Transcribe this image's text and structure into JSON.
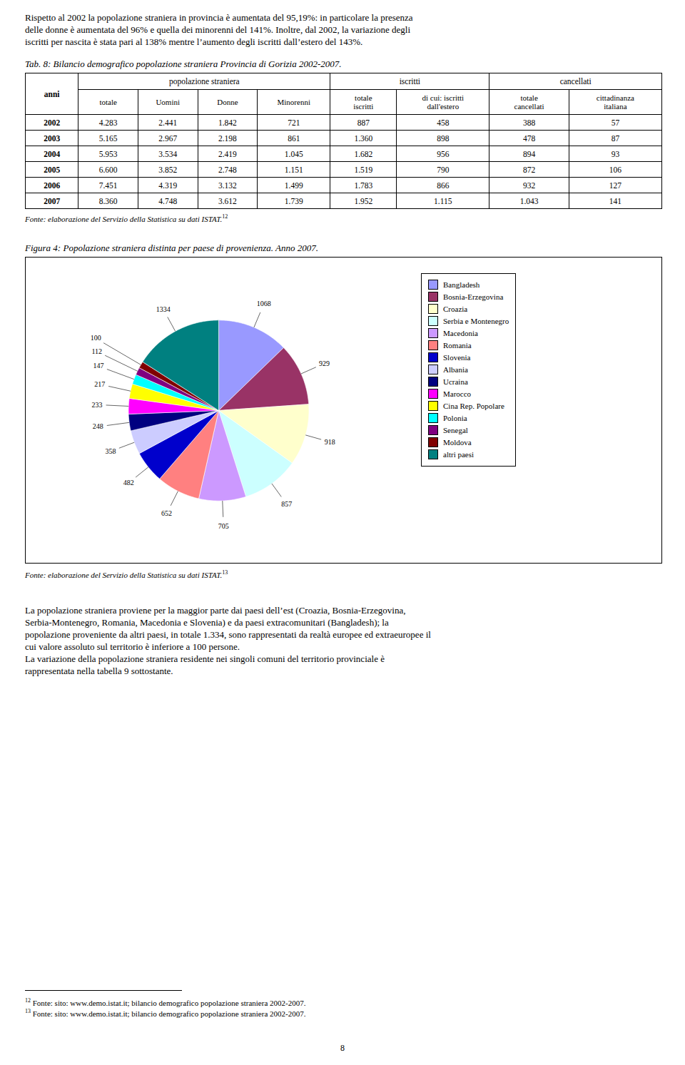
{
  "chart_data": {
    "type": "pie",
    "title": "Figura 4: Popolazione straniera distinta per paese di provenienza. Anno 2007.",
    "categories": [
      "Bangladesh",
      "Bosnia-Erzegovina",
      "Croazia",
      "Serbia e Montenegro",
      "Macedonia",
      "Romania",
      "Slovenia",
      "Albania",
      "Ucraina",
      "Marocco",
      "Cina Rep. Popolare",
      "Polonia",
      "Senegal",
      "Moldova",
      "altri paesi"
    ],
    "values": [
      1068,
      929,
      918,
      857,
      705,
      652,
      482,
      358,
      248,
      233,
      217,
      147,
      112,
      100,
      1334
    ],
    "colors": [
      "#9999ff",
      "#993366",
      "#ffffcc",
      "#ccffff",
      "#cc99ff",
      "#ff8080",
      "#0000cc",
      "#ccccff",
      "#000080",
      "#ff00ff",
      "#ffff00",
      "#00ffff",
      "#800080",
      "#800000",
      "#008080"
    ],
    "data_labels": true,
    "legend": "right"
  },
  "page": {
    "intro_lines": [
      "Rispetto al 2002 la popolazione straniera in provincia è aumentata del 95,19%: in particolare la presenza",
      "delle donne è aumentata del 96% e quella dei minorenni del 141%. Inoltre, dal 2002, la variazione degli",
      "iscritti per nascita è stata pari al 138% mentre l’aumento degli iscritti dall’estero del 143%."
    ],
    "table": {
      "title": "Tab. 8: Bilancio demografico popolazione straniera Provincia di Gorizia 2002-2007.",
      "row_header": "anni",
      "header_groups": [
        {
          "label": "popolazione straniera",
          "columns": [
            "totale",
            "Uomini",
            "Donne",
            "Minorenni"
          ]
        },
        {
          "label": "iscritti",
          "columns": [
            "totale\niscritti",
            "di cui: iscritti\ndall'estero"
          ]
        },
        {
          "label": "cancellati",
          "columns": [
            "totale\ncancellati",
            "cittadinanza\nitaliana"
          ]
        }
      ],
      "rows": [
        [
          "2002",
          "4.283",
          "2.441",
          "1.842",
          "721",
          "887",
          "458",
          "388",
          "57"
        ],
        [
          "2003",
          "5.165",
          "2.967",
          "2.198",
          "861",
          "1.360",
          "898",
          "478",
          "87"
        ],
        [
          "2004",
          "5.953",
          "3.534",
          "2.419",
          "1.045",
          "1.682",
          "956",
          "894",
          "93"
        ],
        [
          "2005",
          "6.600",
          "3.852",
          "2.748",
          "1.151",
          "1.519",
          "790",
          "872",
          "106"
        ],
        [
          "2006",
          "7.451",
          "4.319",
          "3.132",
          "1.499",
          "1.783",
          "866",
          "932",
          "127"
        ],
        [
          "2007",
          "8.360",
          "4.748",
          "3.612",
          "1.739",
          "1.952",
          "1.115",
          "1.043",
          "141"
        ]
      ],
      "source": "Fonte: elaborazione del Servizio della Statistica su dati ISTAT.",
      "source_note": "12"
    },
    "figure_source": "Fonte: elaborazione del Servizio della Statistica su dati ISTAT.",
    "figure_source_note": "13",
    "body_paragraphs": [
      [
        "La popolazione straniera proviene per la maggior parte dai paesi dell’est (Croazia, Bosnia-Erzegovina,",
        "Serbia-Montenegro, Romania, Macedonia e Slovenia) e da paesi extracomunitari (Bangladesh); la",
        "popolazione proveniente da altri paesi, in totale 1.334, sono rappresentati da realtà europee ed extraeuropee il",
        "cui valore assoluto sul territorio è inferiore a 100 persone."
      ],
      [
        "La variazione della popolazione straniera residente nei singoli comuni del territorio provinciale è",
        "rappresentata nella tabella 9 sottostante."
      ]
    ],
    "footnotes": [
      {
        "number": "12",
        "text": "Fonte: sito: www.demo.istat.it; bilancio demografico popolazione straniera 2002-2007."
      },
      {
        "number": "13",
        "text": "Fonte: sito: www.demo.istat.it; bilancio demografico popolazione straniera 2002-2007."
      }
    ],
    "page_number": "8"
  }
}
